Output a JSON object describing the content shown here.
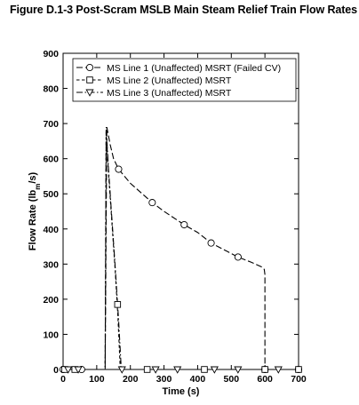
{
  "figure_title": "Figure D.1-3  Post-Scram MSLB Main Steam Relief Train Flow Rates",
  "chart_data": {
    "type": "line",
    "xlabel": "Time (s)",
    "ylabel_main": "Flow Rate (lb",
    "ylabel_sub": "m",
    "ylabel_end": "/s)",
    "xlim": [
      0,
      700
    ],
    "ylim": [
      0,
      900
    ],
    "xticks": [
      0,
      100,
      200,
      300,
      400,
      500,
      600,
      700
    ],
    "yticks": [
      0,
      100,
      200,
      300,
      400,
      500,
      600,
      700,
      800,
      900
    ],
    "grid": false,
    "legend_position": "top",
    "series": [
      {
        "name": "MS Line 1 (Unaffected) MSRT (Failed CV)",
        "line_style": "long-dash",
        "marker": "circle",
        "x": [
          0,
          125,
          130,
          140,
          150,
          165,
          200,
          265,
          300,
          360,
          400,
          440,
          480,
          520,
          560,
          590,
          598,
          600,
          600,
          620,
          660,
          700
        ],
        "y": [
          0,
          0,
          690,
          640,
          600,
          570,
          530,
          475,
          450,
          412,
          390,
          360,
          340,
          320,
          305,
          292,
          285,
          270,
          0,
          0,
          0,
          0
        ],
        "markers": [
          [
            0,
            0
          ],
          [
            55,
            0
          ],
          [
            165,
            570
          ],
          [
            265,
            475
          ],
          [
            360,
            412
          ],
          [
            440,
            360
          ],
          [
            520,
            320
          ],
          [
            600,
            0
          ],
          [
            700,
            0
          ]
        ]
      },
      {
        "name": "MS Line 2 (Unaffected) MSRT",
        "line_style": "short-dash",
        "marker": "square",
        "x": [
          0,
          125,
          128,
          135,
          145,
          155,
          163,
          170,
          700
        ],
        "y": [
          0,
          0,
          680,
          560,
          420,
          280,
          150,
          0,
          0
        ],
        "markers": [
          [
            5,
            0
          ],
          [
            35,
            0
          ],
          [
            162,
            185
          ],
          [
            250,
            0
          ],
          [
            420,
            0
          ],
          [
            600,
            0
          ],
          [
            700,
            0
          ]
        ]
      },
      {
        "name": "MS Line 3 (Unaffected) MSRT",
        "line_style": "dash-dot",
        "marker": "triangle-down",
        "x": [
          0,
          125,
          128,
          135,
          145,
          155,
          165,
          173,
          700
        ],
        "y": [
          0,
          0,
          690,
          570,
          430,
          290,
          140,
          0,
          0
        ],
        "markers": [
          [
            15,
            0
          ],
          [
            45,
            0
          ],
          [
            175,
            0
          ],
          [
            275,
            0
          ],
          [
            340,
            0
          ],
          [
            450,
            0
          ],
          [
            520,
            0
          ],
          [
            640,
            0
          ]
        ]
      }
    ]
  }
}
